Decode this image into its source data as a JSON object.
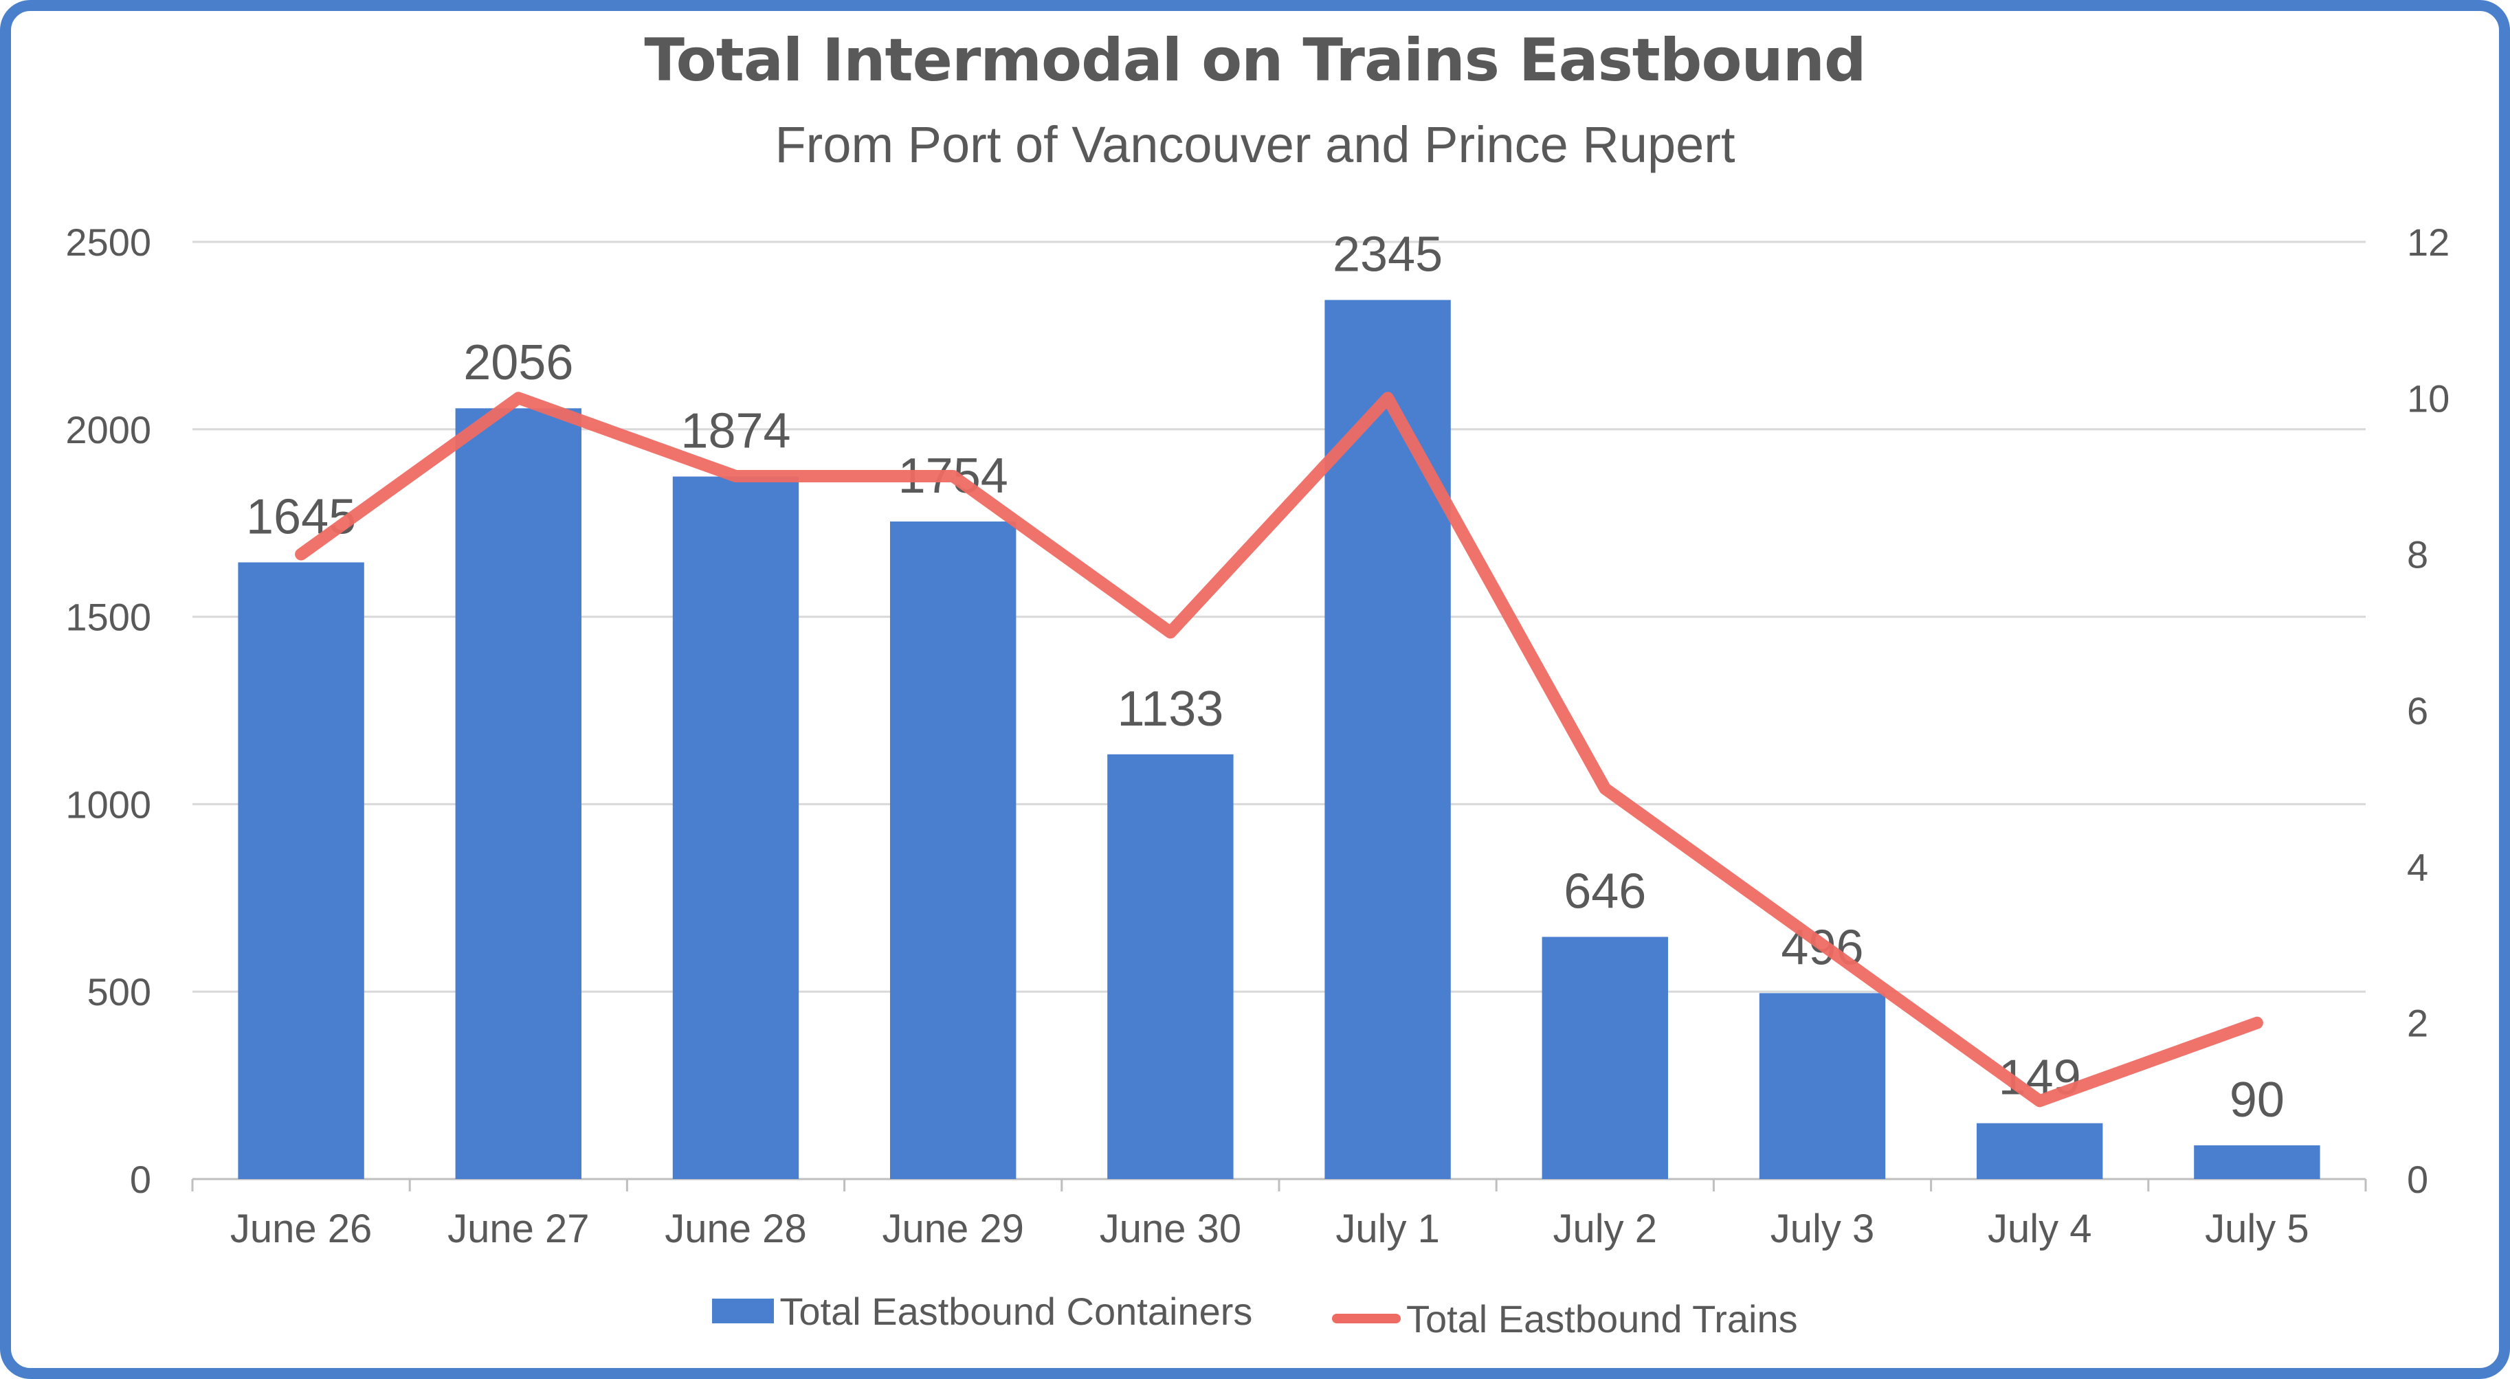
{
  "chart_data": {
    "type": "bar",
    "title": "Total Intermodal on Trains Eastbound",
    "subtitle": "From Port of Vancouver and Prince Rupert",
    "categories": [
      "June 26",
      "June 27",
      "June 28",
      "June 29",
      "June 30",
      "July 1",
      "July 2",
      "July 3",
      "July 4",
      "July 5"
    ],
    "series": [
      {
        "name": "Total Eastbound Containers",
        "type": "bar",
        "axis": "left",
        "color": "#4a7fd0",
        "values": [
          1645,
          2056,
          1874,
          1754,
          1133,
          2345,
          646,
          496,
          149,
          90
        ],
        "data_labels": [
          "1645",
          "2056",
          "1874",
          "1754",
          "1133",
          "2345",
          "646",
          "496",
          "149",
          "90"
        ]
      },
      {
        "name": "Total Eastbound Trains",
        "type": "line",
        "axis": "right",
        "color": "#ee6b63",
        "values": [
          8,
          10,
          9,
          9,
          7,
          10,
          5,
          3,
          1,
          2
        ]
      }
    ],
    "y_left": {
      "ylim": [
        0,
        2500
      ],
      "ticks": [
        "0",
        "500",
        "1000",
        "1500",
        "2000",
        "2500"
      ]
    },
    "y_right": {
      "ylim": [
        0,
        12
      ],
      "ticks": [
        "0",
        "2",
        "4",
        "6",
        "8",
        "10",
        "12"
      ]
    },
    "grid": true,
    "legend_position": "bottom"
  },
  "frame_color": "#4a7fcc"
}
